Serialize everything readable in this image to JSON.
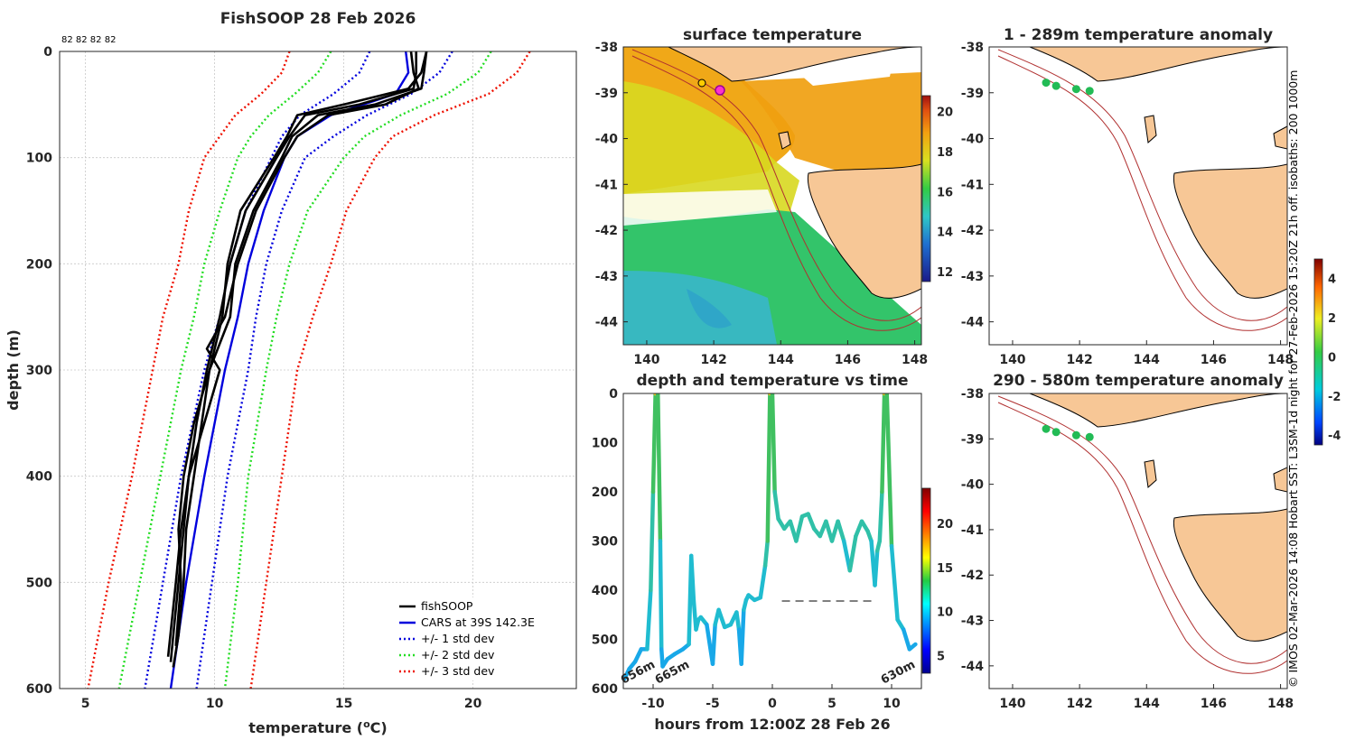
{
  "chart_data": [
    {
      "type": "line",
      "title": "FishSOOP 28 Feb 2026",
      "xlabel": "temperature (°C)",
      "ylabel": "depth (m)",
      "xlim": [
        4,
        24
      ],
      "ylim": [
        600,
        0
      ],
      "xticks": [
        5,
        10,
        15,
        20
      ],
      "yticks": [
        0,
        100,
        200,
        300,
        400,
        500,
        600
      ],
      "top_annotation": "82 82 82 82",
      "legend": [
        "fishSOOP",
        "CARS at 39S 142.3E",
        "+/- 1 std dev",
        "+/- 2 std dev",
        "+/- 3 std dev"
      ],
      "series": [
        {
          "name": "CARS at 39S 142.3E",
          "depth": [
            0,
            20,
            40,
            60,
            80,
            100,
            150,
            200,
            250,
            300,
            400,
            500,
            600
          ],
          "temp": [
            17.4,
            17.5,
            17.0,
            14.5,
            13.2,
            12.7,
            11.9,
            11.3,
            10.9,
            10.4,
            9.6,
            8.9,
            8.3
          ]
        },
        {
          "name": "+/- 1 std dev low",
          "depth": [
            0,
            20,
            40,
            60,
            80,
            100,
            150,
            200,
            250,
            300,
            400,
            500,
            600
          ],
          "temp": [
            16.0,
            15.6,
            14.6,
            13.3,
            12.6,
            12.2,
            11.2,
            10.6,
            10.2,
            9.6,
            8.7,
            8.0,
            7.3
          ]
        },
        {
          "name": "+/- 1 std dev high",
          "depth": [
            0,
            20,
            40,
            60,
            80,
            100,
            150,
            200,
            250,
            300,
            400,
            500,
            600
          ],
          "temp": [
            19.2,
            18.7,
            17.6,
            15.9,
            14.6,
            13.5,
            12.6,
            12.0,
            11.6,
            11.3,
            10.5,
            9.9,
            9.3
          ]
        },
        {
          "name": "+/- 2 std dev low",
          "depth": [
            0,
            20,
            40,
            60,
            80,
            100,
            150,
            200,
            250,
            300,
            400,
            500,
            600
          ],
          "temp": [
            14.5,
            14.0,
            13.1,
            12.1,
            11.4,
            10.9,
            10.2,
            9.6,
            9.2,
            8.7,
            7.9,
            7.1,
            6.3
          ]
        },
        {
          "name": "+/- 2 std dev high",
          "depth": [
            0,
            20,
            40,
            60,
            80,
            100,
            150,
            200,
            250,
            300,
            400,
            500,
            600
          ],
          "temp": [
            20.7,
            20.2,
            19.0,
            17.2,
            15.8,
            15.0,
            13.6,
            12.9,
            12.4,
            12.0,
            11.3,
            10.9,
            10.4
          ]
        },
        {
          "name": "+/- 3 std dev low",
          "depth": [
            0,
            20,
            40,
            60,
            80,
            100,
            150,
            200,
            250,
            300,
            400,
            500,
            600
          ],
          "temp": [
            12.9,
            12.6,
            11.8,
            10.8,
            10.2,
            9.6,
            9.0,
            8.6,
            8.0,
            7.6,
            6.8,
            5.9,
            5.1
          ]
        },
        {
          "name": "+/- 3 std dev high",
          "depth": [
            0,
            20,
            40,
            60,
            80,
            100,
            150,
            200,
            250,
            300,
            400,
            500,
            600
          ],
          "temp": [
            22.2,
            21.7,
            20.6,
            18.5,
            16.9,
            16.2,
            15.1,
            14.5,
            13.8,
            13.2,
            12.6,
            12.0,
            11.4
          ]
        }
      ],
      "fishsoop_profiles": [
        {
          "depth": [
            0,
            20,
            35,
            50,
            60,
            80,
            100,
            150,
            200,
            250,
            300,
            350,
            400,
            450,
            500,
            550,
            580
          ],
          "temp": [
            18.2,
            18.1,
            18.0,
            16.2,
            14.0,
            13.0,
            12.6,
            11.5,
            10.8,
            10.6,
            9.8,
            9.5,
            9.2,
            8.9,
            8.8,
            8.6,
            8.4
          ]
        },
        {
          "depth": [
            0,
            20,
            35,
            50,
            60,
            80,
            100,
            150,
            200,
            250,
            300,
            350,
            400,
            450,
            500,
            550,
            575
          ],
          "temp": [
            17.8,
            17.8,
            17.7,
            15.6,
            13.5,
            12.9,
            12.4,
            11.2,
            10.6,
            10.2,
            9.7,
            9.3,
            9.0,
            8.8,
            8.6,
            8.4,
            8.3
          ]
        },
        {
          "depth": [
            0,
            20,
            35,
            50,
            60,
            80,
            100,
            150,
            200,
            250,
            280,
            300,
            350,
            400,
            450,
            500,
            570
          ],
          "temp": [
            17.6,
            17.7,
            17.9,
            16.6,
            14.4,
            13.2,
            12.7,
            11.6,
            10.9,
            10.4,
            9.7,
            10.2,
            9.6,
            9.0,
            8.7,
            8.5,
            8.2
          ]
        },
        {
          "depth": [
            0,
            20,
            35,
            50,
            60,
            80,
            100,
            150,
            200,
            250,
            300,
            350,
            400,
            450,
            500,
            560
          ],
          "temp": [
            18.2,
            18.0,
            17.5,
            15.0,
            13.2,
            12.8,
            12.3,
            11.0,
            10.5,
            10.3,
            9.8,
            9.2,
            8.8,
            8.6,
            8.7,
            8.5
          ]
        }
      ]
    },
    {
      "type": "heatmap",
      "title": "surface temperature",
      "xticks": [
        140,
        142,
        144,
        146,
        148
      ],
      "yticks": [
        -38,
        -39,
        -40,
        -41,
        -42,
        -43,
        -44
      ],
      "xlim": [
        139.3,
        148.2
      ],
      "ylim": [
        -44.5,
        -38
      ],
      "colorbar_ticks": [
        12,
        14,
        16,
        18,
        20
      ],
      "colorbar_range": [
        11.5,
        20.8
      ]
    },
    {
      "type": "line",
      "title": "depth and temperature vs time",
      "xlabel": "hours from 12:00Z 28 Feb 26",
      "xlim": [
        -12.5,
        12.5
      ],
      "ylim": [
        600,
        0
      ],
      "xticks": [
        -10,
        -5,
        0,
        5,
        10
      ],
      "yticks": [
        0,
        100,
        200,
        300,
        400,
        500,
        600
      ],
      "colorbar_ticks": [
        5,
        10,
        15,
        20
      ],
      "colorbar_range": [
        3,
        24
      ],
      "annotations": [
        "656m",
        "665m",
        "630m"
      ],
      "track": {
        "time": [
          -12.4,
          -12.0,
          -11.5,
          -11.0,
          -10.5,
          -10.2,
          -10.0,
          -9.8,
          -9.6,
          -9.4,
          -9.3,
          -9.2,
          -8.8,
          -8.2,
          -7.5,
          -7.0,
          -6.8,
          -6.6,
          -6.4,
          -6.2,
          -6.0,
          -5.5,
          -5.0,
          -4.8,
          -4.5,
          -4.0,
          -3.5,
          -3.0,
          -2.8,
          -2.6,
          -2.4,
          -2.2,
          -2.0,
          -1.5,
          -1.0,
          -0.6,
          -0.4,
          -0.2,
          0.0,
          0.2,
          0.5,
          1.0,
          1.5,
          2.0,
          2.5,
          3.0,
          3.5,
          4.0,
          4.5,
          5.0,
          5.5,
          6.0,
          6.5,
          7.0,
          7.5,
          8.0,
          8.3,
          8.6,
          8.8,
          9.0,
          9.2,
          9.4,
          9.6,
          10.0,
          10.5,
          11.0,
          11.5,
          12.0
        ],
        "depth": [
          580,
          560,
          545,
          520,
          520,
          400,
          200,
          0,
          0,
          300,
          520,
          555,
          540,
          530,
          520,
          510,
          330,
          420,
          480,
          460,
          455,
          470,
          550,
          470,
          440,
          475,
          470,
          445,
          480,
          550,
          440,
          420,
          410,
          420,
          415,
          350,
          300,
          0,
          0,
          200,
          255,
          275,
          260,
          300,
          250,
          245,
          275,
          290,
          260,
          300,
          260,
          300,
          360,
          290,
          260,
          280,
          300,
          390,
          320,
          300,
          200,
          0,
          0,
          310,
          460,
          480,
          520,
          510
        ]
      },
      "dashed_line": {
        "time": [
          0.8,
          8.5
        ],
        "depth": 422
      }
    },
    {
      "type": "heatmap",
      "title": "1 - 289m temperature anomaly",
      "xticks": [
        140,
        142,
        144,
        146,
        148
      ],
      "yticks": [
        -38,
        -39,
        -40,
        -41,
        -42,
        -43,
        -44
      ],
      "xlim": [
        139.3,
        148.2
      ],
      "ylim": [
        -44.5,
        -38
      ],
      "points": [
        {
          "lon": 141.0,
          "lat": -38.78
        },
        {
          "lon": 141.3,
          "lat": -38.85
        },
        {
          "lon": 141.9,
          "lat": -38.92
        },
        {
          "lon": 142.3,
          "lat": -38.96
        }
      ]
    },
    {
      "type": "heatmap",
      "title": "290 - 580m temperature anomaly",
      "xticks": [
        140,
        142,
        144,
        146,
        148
      ],
      "yticks": [
        -38,
        -39,
        -40,
        -41,
        -42,
        -43,
        -44
      ],
      "xlim": [
        139.3,
        148.2
      ],
      "ylim": [
        -44.5,
        -38
      ],
      "points": [
        {
          "lon": 141.0,
          "lat": -38.78
        },
        {
          "lon": 141.3,
          "lat": -38.85
        },
        {
          "lon": 141.9,
          "lat": -38.92
        },
        {
          "lon": 142.3,
          "lat": -38.96
        }
      ],
      "colorbar_ticks": [
        -4,
        -2,
        0,
        2,
        4
      ],
      "colorbar_range": [
        -4.5,
        5
      ]
    }
  ],
  "side_caption": "© IMOS 02-Mar-2026 14:08 Hobart SST: L3SM-1d night for 27-Feb-2026 15:20Z 21h off. isobaths: 200  1000m",
  "colors": {
    "fishsoop": "#000000",
    "cars": "#0000dd",
    "std1": "#0000dd",
    "std2": "#22dd22",
    "std3": "#ee1100",
    "land": "#f7c796",
    "isobath": "#b03030",
    "point": "#22bb55"
  }
}
